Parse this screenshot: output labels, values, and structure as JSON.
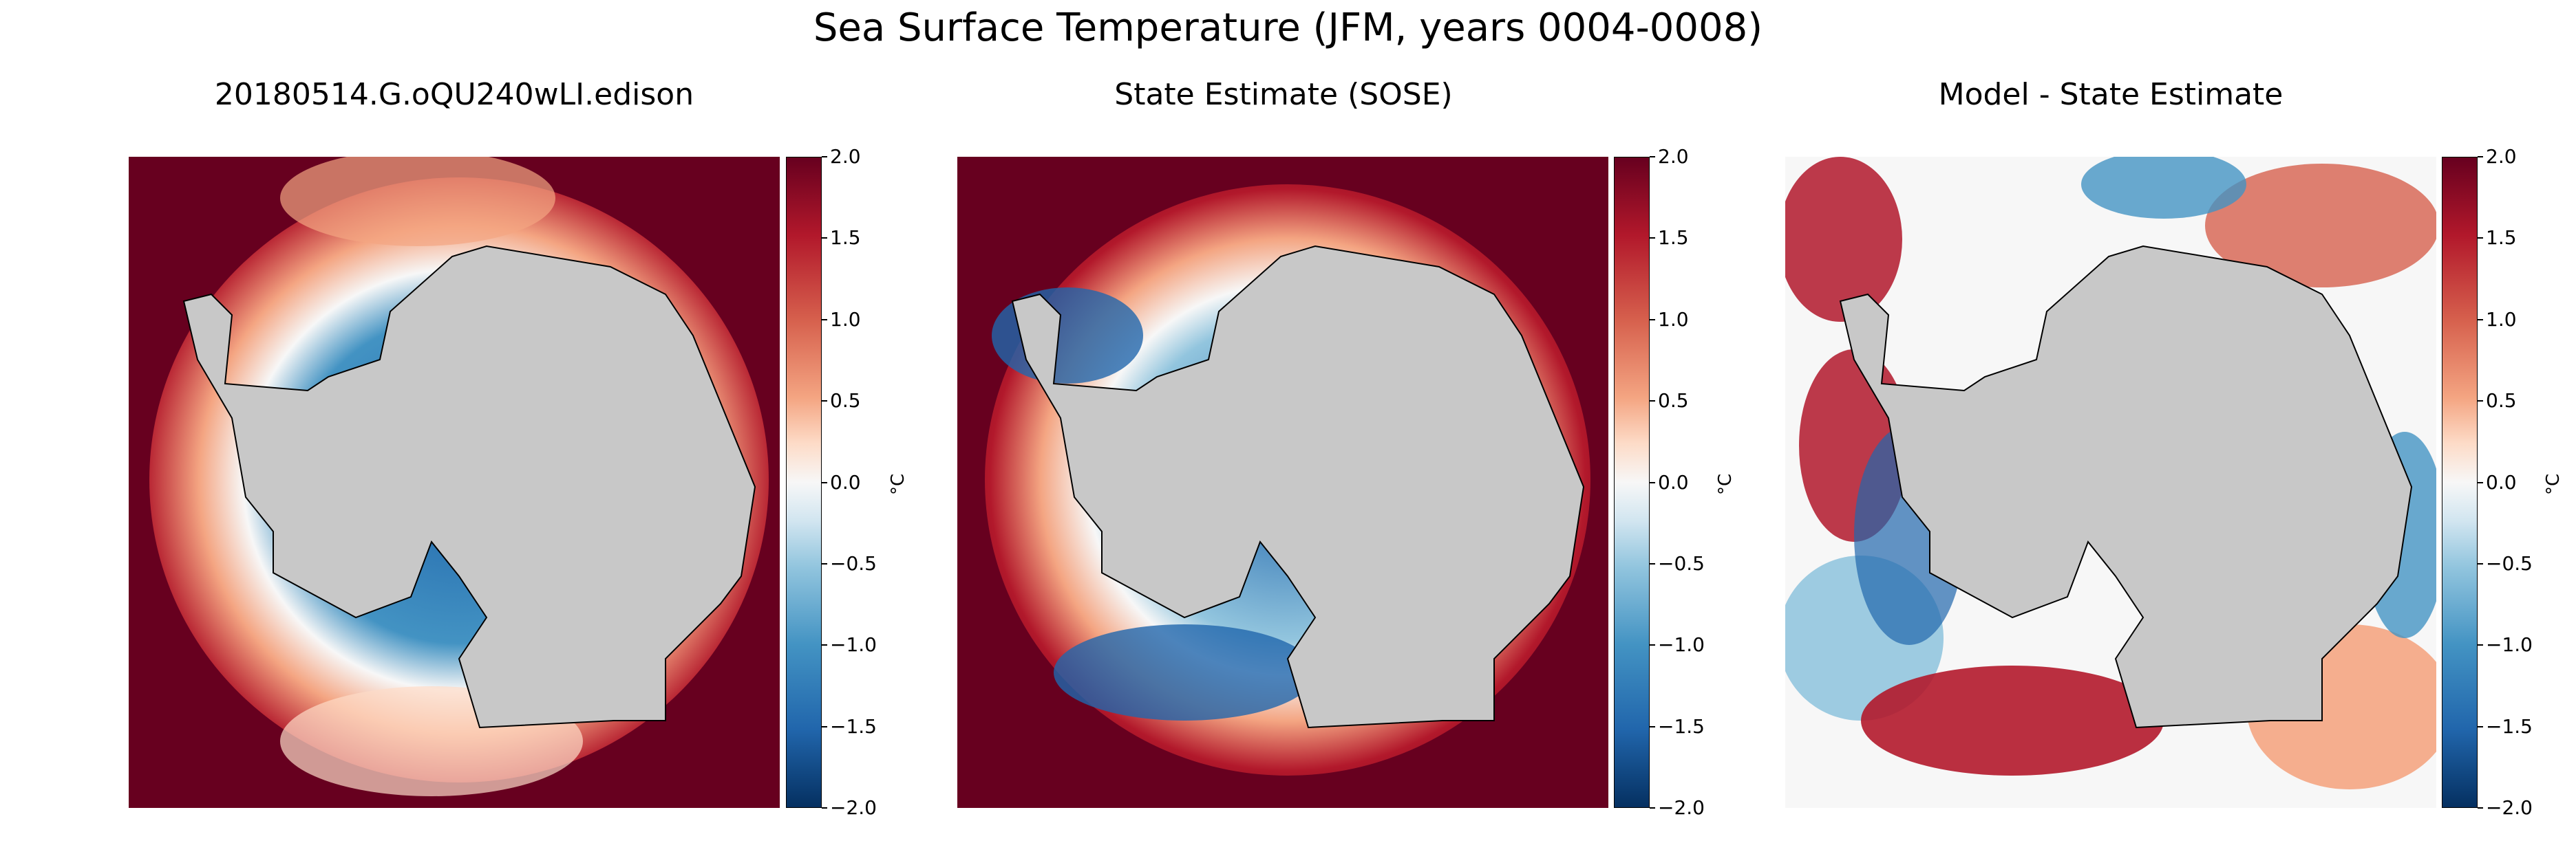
{
  "chart_data": {
    "type": "heatmap",
    "title": "Sea Surface Temperature (JFM, years 0004-0008)",
    "panels": [
      {
        "title": "20180514.G.oQU240wLI.edison",
        "colorbar_label": "°C",
        "vmin": -2.0,
        "vmax": 2.0
      },
      {
        "title": "State Estimate (SOSE)",
        "colorbar_label": "°C",
        "vmin": -2.0,
        "vmax": 2.0
      },
      {
        "title": "Model - State Estimate",
        "colorbar_label": "°C",
        "vmin": -2.0,
        "vmax": 2.0
      }
    ],
    "colorbar_ticks": [
      "2.0",
      "1.5",
      "1.0",
      "0.5",
      "0.0",
      "−0.5",
      "−1.0",
      "−1.5",
      "−2.0"
    ],
    "colormap": "RdBu_r"
  }
}
